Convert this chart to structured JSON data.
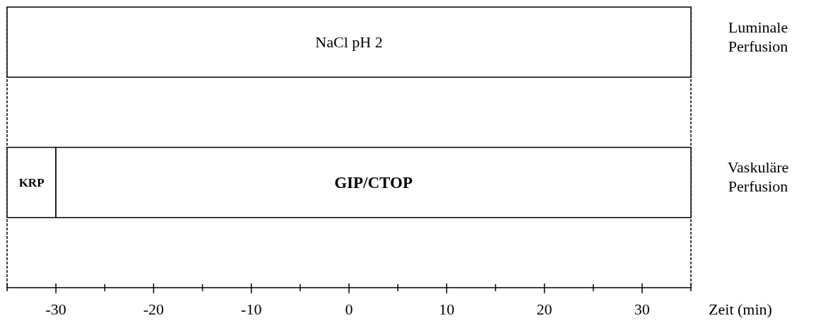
{
  "chart_data": {
    "type": "bar",
    "orientation": "horizontal",
    "xlabel": "Zeit (min)",
    "categories": [
      "Luminale Perfusion",
      null,
      "Vaskuläre Perfusion",
      null
    ],
    "series": [
      {
        "color": "#ffffff",
        "values": [
          70,
          null,
          5,
          null
        ],
        "base": [
          -35,
          null,
          -35,
          null
        ],
        "value_labels": [
          "NaCl pH 2",
          null,
          "KRP",
          null
        ]
      },
      {
        "color": "#ffffff",
        "values": [
          null,
          null,
          65,
          null
        ],
        "base": [
          null,
          null,
          -30,
          null
        ],
        "value_labels": [
          null,
          null,
          "GIP/CTOP",
          null
        ]
      }
    ],
    "xlim": [
      -35,
      35
    ],
    "xticks": [
      {
        "value": -35,
        "label": null
      },
      -30,
      {
        "value": -25,
        "label": null
      },
      -20,
      {
        "value": -15,
        "label": null
      },
      -10,
      {
        "value": -5,
        "label": null
      },
      0,
      {
        "value": 5,
        "label": null
      },
      10,
      {
        "value": 15,
        "label": null
      },
      20,
      {
        "value": 25,
        "label": null
      },
      30,
      {
        "value": 35,
        "label": null
      }
    ],
    "grid": false
  }
}
